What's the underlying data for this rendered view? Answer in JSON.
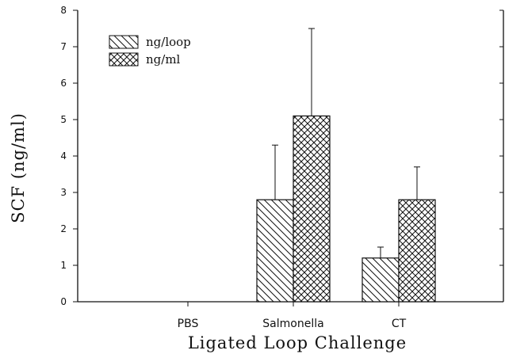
{
  "chart_data": {
    "type": "bar",
    "categories": [
      "PBS",
      "Salmonella",
      "CT"
    ],
    "series": [
      {
        "name": "ng/loop",
        "values": [
          0,
          2.8,
          1.2
        ],
        "errors": [
          0,
          1.5,
          0.3
        ],
        "pattern": "diagonal-hatch"
      },
      {
        "name": "ng/ml",
        "values": [
          0,
          5.1,
          2.8
        ],
        "errors": [
          0,
          2.4,
          0.9
        ],
        "pattern": "cross-hatch"
      }
    ],
    "xlabel": "Ligated Loop Challenge",
    "ylabel": "SCF (ng/ml)",
    "ylim": [
      0,
      8
    ],
    "yticks": [
      "0",
      "1",
      "2",
      "3",
      "4",
      "5",
      "6",
      "7",
      "8"
    ],
    "grid": false,
    "legend_position": "top-left",
    "colors": {
      "ink": "#111111",
      "background": "#ffffff"
    }
  }
}
